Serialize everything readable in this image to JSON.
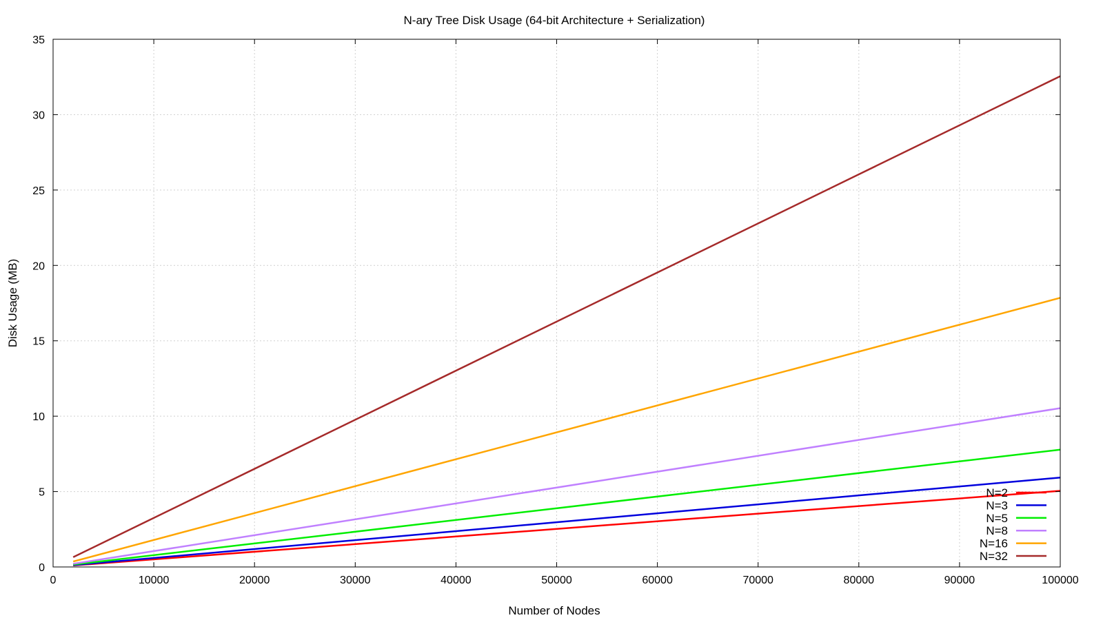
{
  "chart_data": {
    "type": "line",
    "title": "N-ary Tree Disk Usage (64-bit Architecture + Serialization)",
    "xlabel": "Number of Nodes",
    "ylabel": "Disk Usage (MB)",
    "xlim": [
      0,
      100000
    ],
    "ylim": [
      0,
      35
    ],
    "xticks": [
      0,
      10000,
      20000,
      30000,
      40000,
      50000,
      60000,
      70000,
      80000,
      90000,
      100000
    ],
    "yticks": [
      0,
      5,
      10,
      15,
      20,
      25,
      30,
      35
    ],
    "grid": true,
    "legend_position": "bottom-right",
    "series": [
      {
        "name": "N=2",
        "color": "#ff0000",
        "x": [
          2000,
          100000
        ],
        "y": [
          0.1,
          5.05
        ]
      },
      {
        "name": "N=3",
        "color": "#0000dd",
        "x": [
          2000,
          100000
        ],
        "y": [
          0.12,
          5.93
        ]
      },
      {
        "name": "N=5",
        "color": "#00ee00",
        "x": [
          2000,
          100000
        ],
        "y": [
          0.16,
          7.78
        ]
      },
      {
        "name": "N=8",
        "color": "#c080ff",
        "x": [
          2000,
          100000
        ],
        "y": [
          0.21,
          10.53
        ]
      },
      {
        "name": "N=16",
        "color": "#ffa500",
        "x": [
          2000,
          100000
        ],
        "y": [
          0.36,
          17.85
        ]
      },
      {
        "name": "N=32",
        "color": "#a52a2a",
        "x": [
          2000,
          100000
        ],
        "y": [
          0.65,
          32.55
        ]
      }
    ]
  }
}
